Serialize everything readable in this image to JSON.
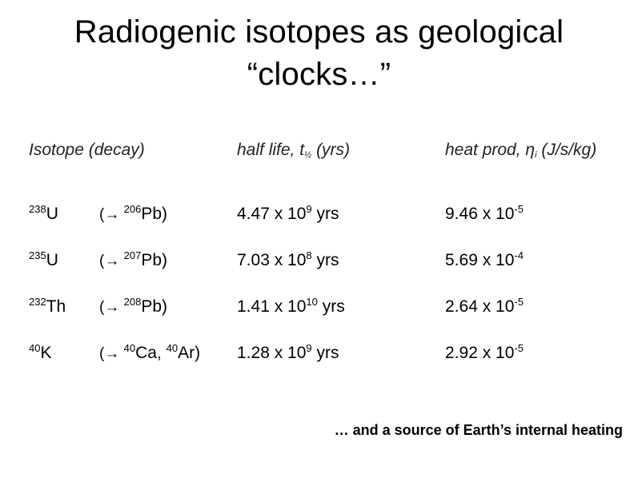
{
  "title": {
    "line1": "Radiogenic isotopes as geological",
    "line2": "“clocks…”"
  },
  "table": {
    "headers": {
      "isotope": "Isotope (decay)",
      "half_life_prefix": "half life, t",
      "half_life_sub": "½",
      "half_life_suffix": " (yrs)",
      "heat_prefix": "heat prod, η",
      "heat_sub": "i",
      "heat_suffix": " (J/s/kg)"
    },
    "rows": [
      {
        "iso_mass": "238",
        "iso_sym": "U",
        "arrow": "(→ ",
        "d1_mass": "206",
        "d1_sym": "Pb",
        "d_sep": "",
        "d2_mass": "",
        "d2_sym": "",
        "d_close": ")",
        "hl_base": "4.47 x 10",
        "hl_exp": "9",
        "hl_unit": " yrs",
        "hp_base": "9.46 x 10",
        "hp_exp": "-5"
      },
      {
        "iso_mass": "235",
        "iso_sym": "U",
        "arrow": "(→ ",
        "d1_mass": "207",
        "d1_sym": "Pb",
        "d_sep": "",
        "d2_mass": "",
        "d2_sym": "",
        "d_close": ")",
        "hl_base": "7.03 x 10",
        "hl_exp": "8",
        "hl_unit": " yrs",
        "hp_base": "5.69 x 10",
        "hp_exp": "-4"
      },
      {
        "iso_mass": "232",
        "iso_sym": "Th",
        "arrow": "(→ ",
        "d1_mass": "208",
        "d1_sym": "Pb",
        "d_sep": "",
        "d2_mass": "",
        "d2_sym": "",
        "d_close": ")",
        "hl_base": "1.41 x 10",
        "hl_exp": "10",
        "hl_unit": " yrs",
        "hp_base": "2.64 x 10",
        "hp_exp": "-5"
      },
      {
        "iso_mass": "40",
        "iso_sym": "K",
        "arrow": "(→ ",
        "d1_mass": "40",
        "d1_sym": "Ca",
        "d_sep": ", ",
        "d2_mass": "40",
        "d2_sym": "Ar",
        "d_close": ")",
        "hl_base": "1.28 x 10",
        "hl_exp": "9",
        "hl_unit": " yrs",
        "hp_base": "2.92 x 10",
        "hp_exp": "-5"
      }
    ]
  },
  "footer": "… and a source of Earth’s internal heating"
}
